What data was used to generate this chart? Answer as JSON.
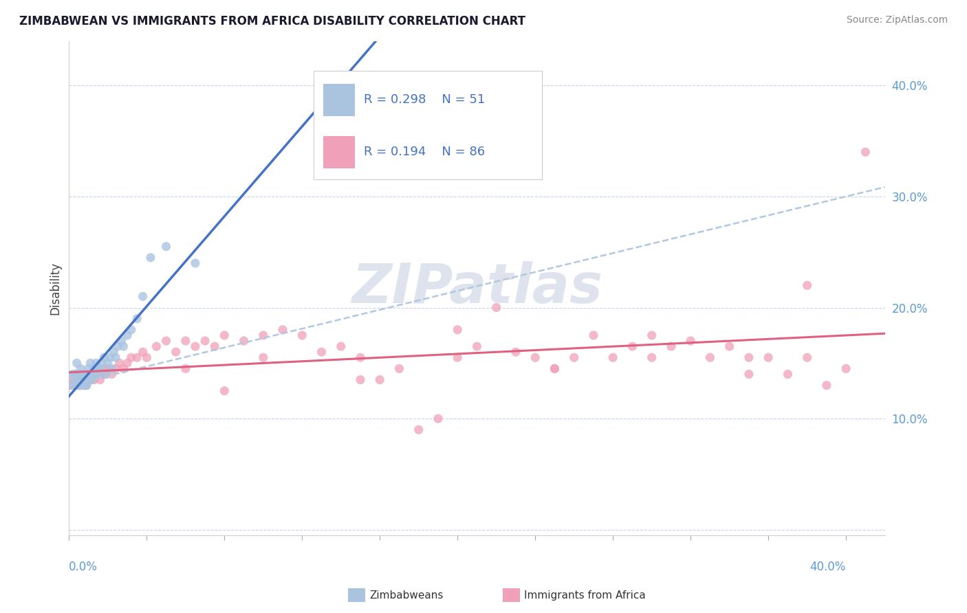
{
  "title": "ZIMBABWEAN VS IMMIGRANTS FROM AFRICA DISABILITY CORRELATION CHART",
  "source": "Source: ZipAtlas.com",
  "ylabel": "Disability",
  "xlim": [
    0.0,
    0.42
  ],
  "ylim": [
    -0.005,
    0.44
  ],
  "yticks": [
    0.0,
    0.1,
    0.2,
    0.3,
    0.4
  ],
  "ytick_labels": [
    "",
    "10.0%",
    "20.0%",
    "30.0%",
    "40.0%"
  ],
  "legend1_R": "0.298",
  "legend1_N": "51",
  "legend2_R": "0.194",
  "legend2_N": "86",
  "zim_color": "#aac4e0",
  "afr_color": "#f0a0b8",
  "zim_line_color": "#4472c4",
  "afr_line_color": "#e06080",
  "dashed_line_color": "#b0c8e0",
  "watermark_color": "#d0d8e8",
  "background_color": "#ffffff",
  "grid_color": "#c8d4e8",
  "zim_x": [
    0.001,
    0.002,
    0.003,
    0.003,
    0.004,
    0.004,
    0.005,
    0.005,
    0.005,
    0.006,
    0.006,
    0.006,
    0.007,
    0.007,
    0.007,
    0.008,
    0.008,
    0.008,
    0.009,
    0.009,
    0.009,
    0.01,
    0.01,
    0.011,
    0.011,
    0.012,
    0.012,
    0.013,
    0.013,
    0.014,
    0.015,
    0.015,
    0.016,
    0.017,
    0.018,
    0.019,
    0.02,
    0.021,
    0.022,
    0.023,
    0.024,
    0.025,
    0.027,
    0.028,
    0.03,
    0.032,
    0.035,
    0.038,
    0.042,
    0.05,
    0.065
  ],
  "zim_y": [
    0.13,
    0.14,
    0.135,
    0.14,
    0.13,
    0.15,
    0.13,
    0.135,
    0.14,
    0.13,
    0.135,
    0.145,
    0.13,
    0.135,
    0.14,
    0.13,
    0.135,
    0.14,
    0.13,
    0.135,
    0.14,
    0.135,
    0.145,
    0.14,
    0.15,
    0.135,
    0.14,
    0.14,
    0.145,
    0.15,
    0.14,
    0.145,
    0.145,
    0.15,
    0.155,
    0.14,
    0.15,
    0.155,
    0.145,
    0.16,
    0.155,
    0.165,
    0.17,
    0.165,
    0.175,
    0.18,
    0.19,
    0.21,
    0.245,
    0.255,
    0.24
  ],
  "afr_x": [
    0.001,
    0.002,
    0.003,
    0.004,
    0.004,
    0.005,
    0.005,
    0.006,
    0.006,
    0.007,
    0.007,
    0.008,
    0.008,
    0.009,
    0.009,
    0.01,
    0.01,
    0.011,
    0.012,
    0.013,
    0.014,
    0.015,
    0.016,
    0.017,
    0.018,
    0.019,
    0.02,
    0.022,
    0.024,
    0.026,
    0.028,
    0.03,
    0.032,
    0.035,
    0.038,
    0.04,
    0.045,
    0.05,
    0.055,
    0.06,
    0.065,
    0.07,
    0.075,
    0.08,
    0.09,
    0.1,
    0.11,
    0.12,
    0.13,
    0.14,
    0.15,
    0.16,
    0.17,
    0.18,
    0.19,
    0.2,
    0.21,
    0.22,
    0.23,
    0.24,
    0.25,
    0.26,
    0.27,
    0.28,
    0.29,
    0.3,
    0.31,
    0.32,
    0.33,
    0.34,
    0.35,
    0.36,
    0.37,
    0.38,
    0.39,
    0.4,
    0.41,
    0.38,
    0.35,
    0.3,
    0.25,
    0.2,
    0.15,
    0.1,
    0.08,
    0.06
  ],
  "afr_y": [
    0.13,
    0.135,
    0.13,
    0.135,
    0.14,
    0.13,
    0.135,
    0.13,
    0.14,
    0.135,
    0.14,
    0.13,
    0.135,
    0.13,
    0.14,
    0.135,
    0.14,
    0.135,
    0.14,
    0.135,
    0.14,
    0.14,
    0.135,
    0.14,
    0.145,
    0.14,
    0.145,
    0.14,
    0.145,
    0.15,
    0.145,
    0.15,
    0.155,
    0.155,
    0.16,
    0.155,
    0.165,
    0.17,
    0.16,
    0.17,
    0.165,
    0.17,
    0.165,
    0.175,
    0.17,
    0.175,
    0.18,
    0.175,
    0.16,
    0.165,
    0.155,
    0.135,
    0.145,
    0.09,
    0.1,
    0.155,
    0.165,
    0.2,
    0.16,
    0.155,
    0.145,
    0.155,
    0.175,
    0.155,
    0.165,
    0.155,
    0.165,
    0.17,
    0.155,
    0.165,
    0.14,
    0.155,
    0.14,
    0.155,
    0.13,
    0.145,
    0.34,
    0.22,
    0.155,
    0.175,
    0.145,
    0.18,
    0.135,
    0.155,
    0.125,
    0.145
  ]
}
